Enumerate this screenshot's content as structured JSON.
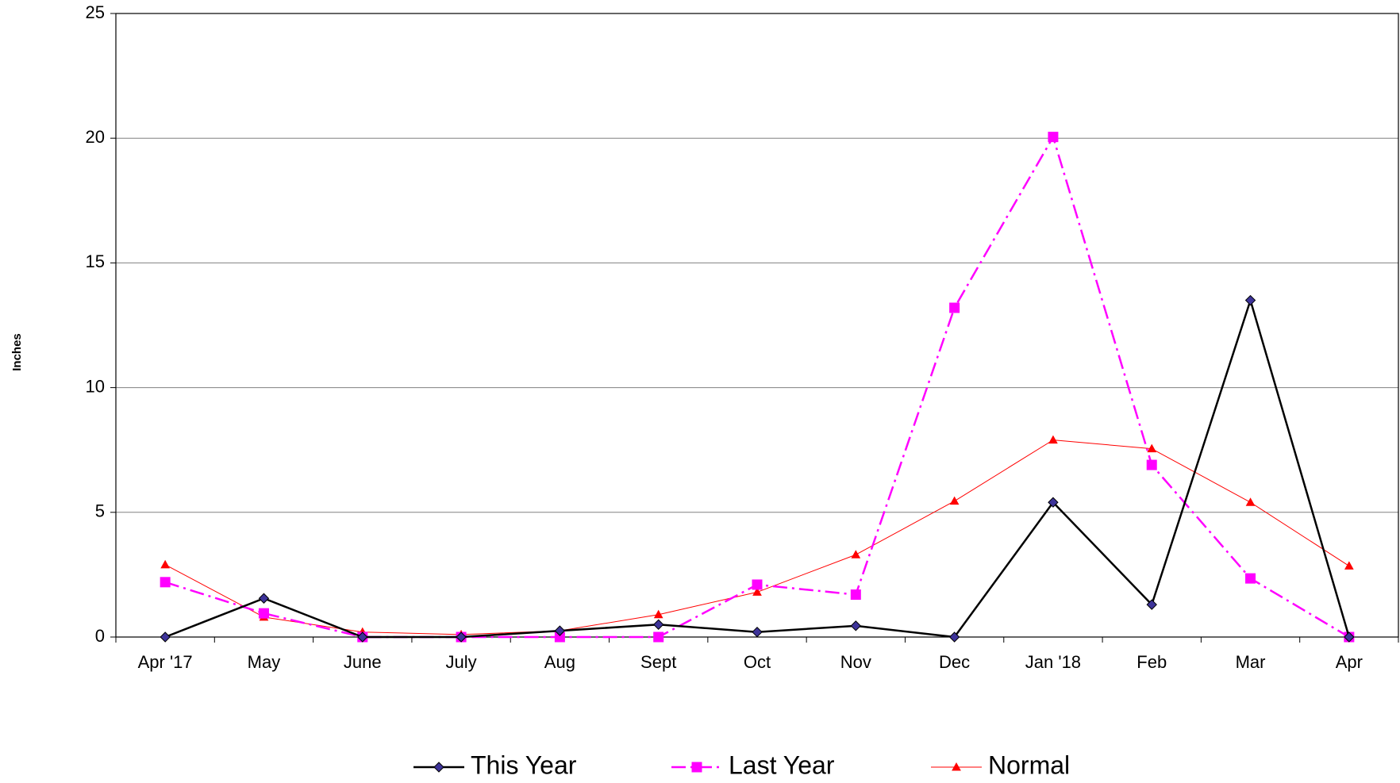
{
  "chart_data": {
    "type": "line",
    "y_label": "Inches",
    "categories": [
      "Apr '17",
      "May",
      "June",
      "July",
      "Aug",
      "Sept",
      "Oct",
      "Nov",
      "Dec",
      "Jan '18",
      "Feb",
      "Mar",
      "Apr"
    ],
    "series": [
      {
        "name": "This Year",
        "color": "#000000",
        "marker_color": "#3d3399",
        "marker": "diamond",
        "line_style": "solid",
        "line_width": 2.5,
        "values": [
          0,
          1.55,
          0,
          0,
          0.25,
          0.5,
          0.2,
          0.45,
          0,
          5.4,
          1.3,
          13.5,
          0
        ]
      },
      {
        "name": "Last Year",
        "color": "#ff00ff",
        "marker_color": "#ff00ff",
        "marker": "square",
        "line_style": "dashdot",
        "line_width": 2.5,
        "values": [
          2.2,
          0.95,
          0,
          0,
          0,
          0,
          2.1,
          1.7,
          13.2,
          20.05,
          6.9,
          2.35,
          0
        ]
      },
      {
        "name": "Normal",
        "color": "#ff0000",
        "marker_color": "#ff0000",
        "marker": "triangle",
        "line_style": "solid",
        "line_width": 1,
        "values": [
          2.9,
          0.8,
          0.2,
          0.1,
          0.25,
          0.9,
          1.8,
          3.3,
          5.45,
          7.9,
          7.55,
          5.4,
          2.85
        ]
      }
    ],
    "ylim": [
      0,
      25
    ],
    "yticks": [
      0,
      5,
      10,
      15,
      20,
      25
    ],
    "grid": true,
    "legend": "bottom"
  }
}
